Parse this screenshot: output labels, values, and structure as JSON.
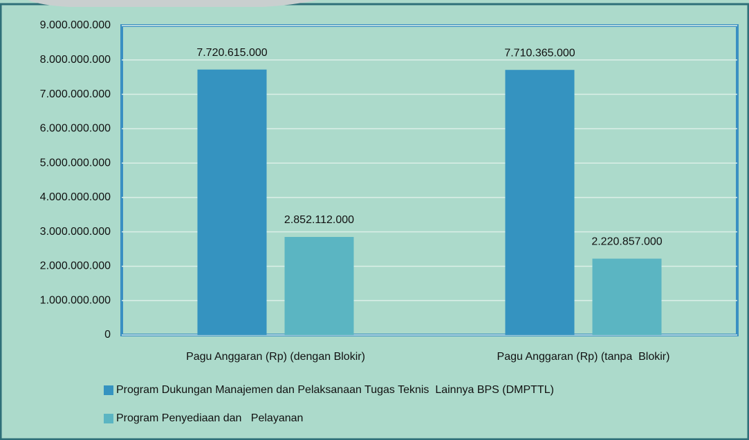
{
  "chart_data": {
    "type": "bar",
    "categories": [
      "Pagu Anggaran (Rp) (dengan Blokir)",
      "Pagu Anggaran (Rp) (tanpa  Blokir)"
    ],
    "series": [
      {
        "name": "Program Dukungan Manajemen dan Pelaksanaan Tugas Teknis  Lainnya BPS (DMPTTL)",
        "color": "#3593c0",
        "values": [
          7720615000,
          7710365000
        ],
        "value_labels": [
          "7.720.615.000",
          "7.710.365.000"
        ]
      },
      {
        "name": "Program Penyediaan dan   Pelayanan",
        "color": "#5bb5c2",
        "values": [
          2852112000,
          2220857000
        ],
        "value_labels": [
          "2.852.112.000",
          "2.220.857.000"
        ]
      }
    ],
    "ylim": [
      0,
      9000000000
    ],
    "yticks": [
      0,
      {
        "value": 1000000000,
        "label": "1.000.000.000"
      },
      {
        "value": 2000000000,
        "label": "2.000.000.000"
      },
      {
        "value": 3000000000,
        "label": "3.000.000.000"
      },
      {
        "value": 4000000000,
        "label": "4.000.000.000"
      },
      {
        "value": 5000000000,
        "label": "5.000.000.000"
      },
      {
        "value": 6000000000,
        "label": "6.000.000.000"
      },
      {
        "value": 7000000000,
        "label": "7.000.000.000"
      },
      {
        "value": 8000000000,
        "label": "8.000.000.000"
      },
      {
        "value": 9000000000,
        "label": "9.000.000.000"
      }
    ],
    "grid": true,
    "legend": "bottom"
  }
}
